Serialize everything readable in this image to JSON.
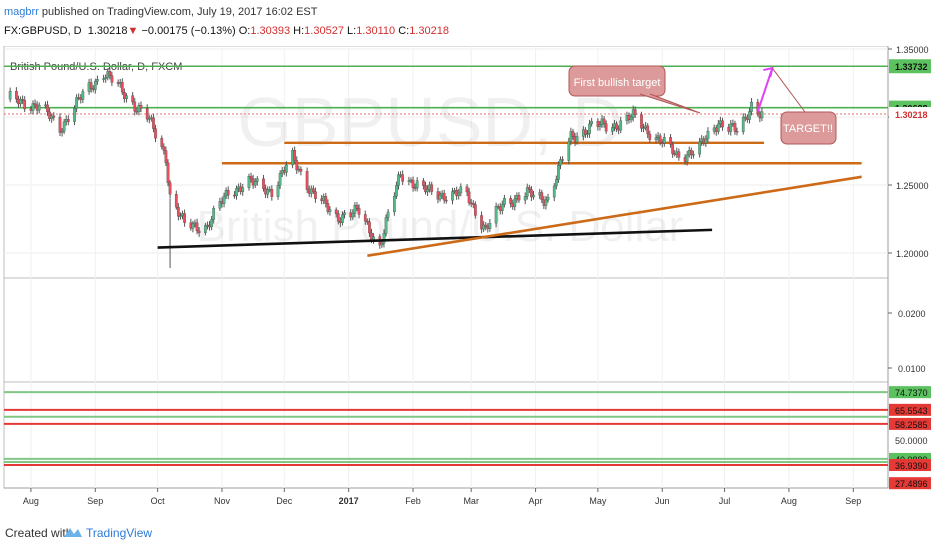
{
  "header": {
    "author": "magbrr",
    "published": "published on TradingView.com, July 19, 2017 16:02 EST",
    "symbol": "FX:GBPUSD, D",
    "last": "1.30218",
    "change": "−0.00175 (−0.13%)",
    "o_label": "O:",
    "o": "1.30393",
    "h_label": "H:",
    "h": "1.30527",
    "l_label": "L:",
    "l": "1.30110",
    "c_label": "C:",
    "c": "1.30218"
  },
  "chart": {
    "series_label": "British Pound/U.S. Dollar, D, FXCM",
    "watermark_symbol": "GBPUSD, D",
    "watermark_name": "British Pound/U.S. Dollar",
    "annotation_first_target": "First bullish target",
    "annotation_target": "TARGET!!",
    "price_tags": {
      "top": "1.33732",
      "resistance": "1.30688",
      "last": "1.30218"
    },
    "price_axis_ticks": [
      "1.35000",
      "1.30000",
      "1.25000",
      "1.20000"
    ],
    "indicator_ticks": [
      "0.0200",
      "0.0100"
    ],
    "rsi_tags": [
      "74.7370",
      "65.5543",
      "58.2585",
      "50.0000",
      "40.0889",
      "36.9390",
      "27.4896"
    ],
    "time_labels": [
      "Aug",
      "Sep",
      "Oct",
      "Nov",
      "Dec",
      "2017",
      "Feb",
      "Mar",
      "Apr",
      "May",
      "Jun",
      "Jul",
      "Aug",
      "Sep"
    ]
  },
  "chart_data": {
    "type": "candlestick",
    "title": "British Pound/U.S. Dollar, D, FXCM",
    "xlabel": "",
    "ylabel": "",
    "ylim": [
      1.18,
      1.36
    ],
    "x_range": [
      "2016-07-20",
      "2017-09-10"
    ],
    "close": [
      [
        "2016-07-22",
        1.313
      ],
      [
        "2016-08-05",
        1.308
      ],
      [
        "2016-08-15",
        1.292
      ],
      [
        "2016-08-26",
        1.316
      ],
      [
        "2016-09-05",
        1.333
      ],
      [
        "2016-09-15",
        1.317
      ],
      [
        "2016-09-26",
        1.3
      ],
      [
        "2016-10-05",
        1.271
      ],
      [
        "2016-10-07",
        1.242
      ],
      [
        "2016-10-14",
        1.22
      ],
      [
        "2016-10-25",
        1.22
      ],
      [
        "2016-11-04",
        1.245
      ],
      [
        "2016-11-14",
        1.252
      ],
      [
        "2016-11-25",
        1.246
      ],
      [
        "2016-12-05",
        1.27
      ],
      [
        "2016-12-15",
        1.243
      ],
      [
        "2016-12-26",
        1.227
      ],
      [
        "2017-01-06",
        1.23
      ],
      [
        "2017-01-16",
        1.205
      ],
      [
        "2017-01-26",
        1.259
      ],
      [
        "2017-02-06",
        1.246
      ],
      [
        "2017-02-16",
        1.243
      ],
      [
        "2017-02-27",
        1.243
      ],
      [
        "2017-03-08",
        1.217
      ],
      [
        "2017-03-17",
        1.238
      ],
      [
        "2017-03-28",
        1.243
      ],
      [
        "2017-04-07",
        1.24
      ],
      [
        "2017-04-18",
        1.285
      ],
      [
        "2017-04-28",
        1.293
      ],
      [
        "2017-05-09",
        1.294
      ],
      [
        "2017-05-18",
        1.3
      ],
      [
        "2017-05-29",
        1.285
      ],
      [
        "2017-06-08",
        1.272
      ],
      [
        "2017-06-18",
        1.275
      ],
      [
        "2017-06-28",
        1.297
      ],
      [
        "2017-07-08",
        1.288
      ],
      [
        "2017-07-14",
        1.31
      ],
      [
        "2017-07-19",
        1.30218
      ]
    ],
    "horizontal_levels": [
      {
        "price": 1.33732,
        "color": "#4caf50"
      },
      {
        "price": 1.30688,
        "color": "#4caf50"
      },
      {
        "price": 1.281,
        "color": "#cc6a17"
      },
      {
        "price": 1.266,
        "color": "#cc6a17"
      }
    ],
    "trendlines": [
      {
        "from": [
          "2016-10-01",
          1.204
        ],
        "to": [
          "2017-06-25",
          1.217
        ],
        "color": "#111111"
      },
      {
        "from": [
          "2017-01-10",
          1.198
        ],
        "to": [
          "2017-09-05",
          1.256
        ],
        "color": "#cc6a17"
      }
    ],
    "target_arrow": {
      "from": [
        "2017-07-17",
        1.304
      ],
      "to": [
        "2017-07-24",
        1.336
      ],
      "color": "#e040fb"
    },
    "indicator_ylim": [
      0.005,
      0.028
    ],
    "rsi_levels": [
      74.737,
      65.5543,
      58.2585,
      50.0,
      40.0889,
      36.939,
      27.4896
    ]
  }
}
